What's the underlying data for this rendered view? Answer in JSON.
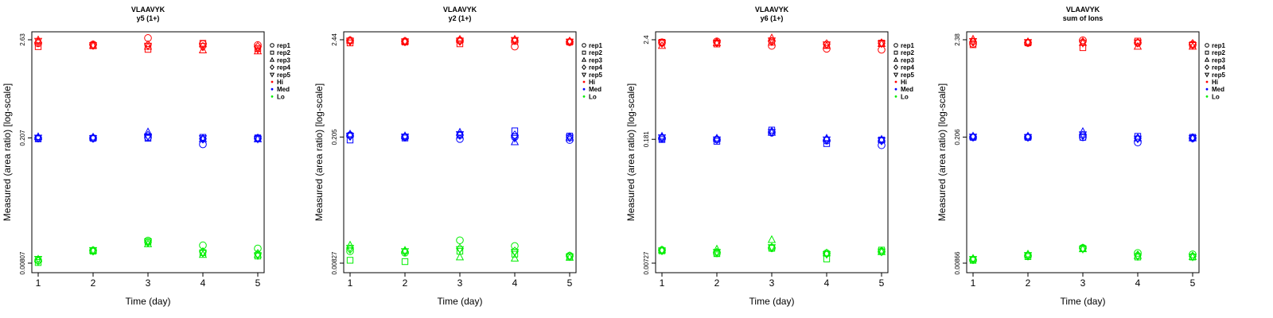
{
  "colors": {
    "Hi": "#ff0000",
    "Med": "#0000ff",
    "Lo": "#00ee00"
  },
  "legend": {
    "shapes": [
      {
        "label": "rep1",
        "shape": "circle"
      },
      {
        "label": "rep2",
        "shape": "square"
      },
      {
        "label": "rep3",
        "shape": "triangle-up"
      },
      {
        "label": "rep4",
        "shape": "diamond"
      },
      {
        "label": "rep5",
        "shape": "triangle-down"
      }
    ],
    "groups": [
      {
        "label": "Hi",
        "color": "#ff0000"
      },
      {
        "label": "Med",
        "color": "#0000ff"
      },
      {
        "label": "Lo",
        "color": "#00ee00"
      }
    ]
  },
  "chart_data": [
    {
      "type": "scatter",
      "title": "VLAAVYK",
      "subtitle": "y5 (1+)",
      "xlabel": "Time (day)",
      "ylabel": "Measured (area ratio) [log-scale]",
      "yscale": "log",
      "x_ticks": [
        1,
        2,
        3,
        4,
        5
      ],
      "y_ticks": [
        0.00807,
        0.207,
        2.63
      ],
      "y_tick_labels": [
        "0.00807",
        "0.207",
        "2.63"
      ],
      "ylim": [
        0.00807,
        2.63
      ],
      "legend_position": "right",
      "grid": false,
      "series": [
        {
          "group": "Hi",
          "x": [
            1,
            2,
            3,
            4,
            5
          ],
          "rep1": [
            2.4,
            2.33,
            2.75,
            2.35,
            2.29
          ],
          "rep2": [
            2.2,
            2.25,
            2.05,
            2.4,
            2.1
          ],
          "rep3": [
            2.6,
            2.25,
            2.2,
            2.0,
            1.95
          ],
          "rep4": [
            2.45,
            2.3,
            2.3,
            2.2,
            2.2
          ],
          "rep5": [
            2.55,
            2.28,
            2.25,
            2.25,
            2.05
          ]
        },
        {
          "group": "Med",
          "x": [
            1,
            2,
            3,
            4,
            5
          ],
          "rep1": [
            0.205,
            0.205,
            0.21,
            0.175,
            0.205
          ],
          "rep2": [
            0.202,
            0.205,
            0.205,
            0.21,
            0.207
          ],
          "rep3": [
            0.212,
            0.21,
            0.24,
            0.2,
            0.2
          ],
          "rep4": [
            0.207,
            0.207,
            0.22,
            0.202,
            0.205
          ],
          "rep5": [
            0.208,
            0.205,
            0.215,
            0.205,
            0.202
          ]
        },
        {
          "group": "Lo",
          "x": [
            1,
            2,
            3,
            4,
            5
          ],
          "rep1": [
            0.0087,
            0.0112,
            0.0145,
            0.0128,
            0.0118
          ],
          "rep2": [
            0.0082,
            0.011,
            0.014,
            0.0106,
            0.0097
          ],
          "rep3": [
            0.0089,
            0.0112,
            0.0132,
            0.01,
            0.01
          ],
          "rep4": [
            0.0085,
            0.0111,
            0.0138,
            0.0108,
            0.0103
          ],
          "rep5": [
            0.009,
            0.0113,
            0.0142,
            0.0105,
            0.0099
          ]
        }
      ]
    },
    {
      "type": "scatter",
      "title": "VLAAVYK",
      "subtitle": "y2 (1+)",
      "xlabel": "Time (day)",
      "ylabel": "Measured (area ratio) [log-scale]",
      "yscale": "log",
      "x_ticks": [
        1,
        2,
        3,
        4,
        5
      ],
      "y_ticks": [
        0.00827,
        0.205,
        2.44
      ],
      "y_tick_labels": [
        "0.00827",
        "0.205",
        "2.44"
      ],
      "ylim": [
        0.00827,
        2.44
      ],
      "legend_position": "right",
      "grid": false,
      "series": [
        {
          "group": "Hi",
          "x": [
            1,
            2,
            3,
            4,
            5
          ],
          "rep1": [
            2.4,
            2.35,
            2.4,
            2.05,
            2.3
          ],
          "rep2": [
            2.25,
            2.3,
            2.2,
            2.35,
            2.3
          ],
          "rep3": [
            2.4,
            2.35,
            2.45,
            2.45,
            2.35
          ],
          "rep4": [
            2.35,
            2.33,
            2.35,
            2.4,
            2.33
          ],
          "rep5": [
            2.38,
            2.34,
            2.38,
            2.42,
            2.32
          ]
        },
        {
          "group": "Med",
          "x": [
            1,
            2,
            3,
            4,
            5
          ],
          "rep1": [
            0.215,
            0.205,
            0.195,
            0.205,
            0.19
          ],
          "rep2": [
            0.19,
            0.2,
            0.215,
            0.24,
            0.21
          ],
          "rep3": [
            0.22,
            0.21,
            0.23,
            0.18,
            0.2
          ],
          "rep4": [
            0.21,
            0.205,
            0.215,
            0.215,
            0.205
          ],
          "rep5": [
            0.212,
            0.207,
            0.22,
            0.2,
            0.202
          ]
        },
        {
          "group": "Lo",
          "x": [
            1,
            2,
            3,
            4,
            5
          ],
          "rep1": [
            0.0112,
            0.0108,
            0.0148,
            0.0128,
            0.01
          ],
          "rep2": [
            0.0089,
            0.0086,
            0.0112,
            0.0104,
            0.0097
          ],
          "rep3": [
            0.013,
            0.0114,
            0.0096,
            0.0093,
            0.0095
          ],
          "rep4": [
            0.0118,
            0.0111,
            0.012,
            0.0112,
            0.0099
          ],
          "rep5": [
            0.0122,
            0.0112,
            0.0118,
            0.011,
            0.0098
          ]
        }
      ]
    },
    {
      "type": "scatter",
      "title": "VLAAVYK",
      "subtitle": "y6 (1+)",
      "xlabel": "Time (day)",
      "ylabel": "Measured (area ratio) [log-scale]",
      "yscale": "log",
      "x_ticks": [
        1,
        2,
        3,
        4,
        5
      ],
      "y_ticks": [
        0.00727,
        0.181,
        2.4
      ],
      "y_tick_labels": [
        "0.00727",
        "0.181",
        "2.4"
      ],
      "ylim": [
        0.00727,
        2.4
      ],
      "legend_position": "right",
      "grid": false,
      "series": [
        {
          "group": "Hi",
          "x": [
            1,
            2,
            3,
            4,
            5
          ],
          "rep1": [
            2.25,
            2.3,
            2.05,
            1.9,
            1.85
          ],
          "rep2": [
            2.25,
            2.15,
            2.25,
            2.1,
            2.2
          ],
          "rep3": [
            2.05,
            2.2,
            2.5,
            2.05,
            2.15
          ],
          "rep4": [
            2.2,
            2.25,
            2.3,
            2.15,
            2.2
          ],
          "rep5": [
            2.22,
            2.22,
            2.35,
            2.12,
            2.18
          ]
        },
        {
          "group": "Med",
          "x": [
            1,
            2,
            3,
            4,
            5
          ],
          "rep1": [
            0.185,
            0.18,
            0.215,
            0.175,
            0.155
          ],
          "rep2": [
            0.18,
            0.172,
            0.23,
            0.162,
            0.178
          ],
          "rep3": [
            0.195,
            0.185,
            0.215,
            0.185,
            0.18
          ],
          "rep4": [
            0.188,
            0.182,
            0.22,
            0.178,
            0.175
          ],
          "rep5": [
            0.19,
            0.18,
            0.218,
            0.18,
            0.176
          ]
        },
        {
          "group": "Lo",
          "x": [
            1,
            2,
            3,
            4,
            5
          ],
          "rep1": [
            0.0102,
            0.0094,
            0.0107,
            0.0094,
            0.0098
          ],
          "rep2": [
            0.01,
            0.0093,
            0.0107,
            0.0081,
            0.0102
          ],
          "rep3": [
            0.0102,
            0.0104,
            0.0133,
            0.0094,
            0.0097
          ],
          "rep4": [
            0.0101,
            0.0096,
            0.0109,
            0.0093,
            0.0099
          ],
          "rep5": [
            0.0101,
            0.0097,
            0.011,
            0.0092,
            0.0098
          ]
        }
      ]
    },
    {
      "type": "scatter",
      "title": "VLAAVYK",
      "subtitle": "sum of Ions",
      "xlabel": "Time (day)",
      "ylabel": "Measured (area ratio) [log-scale]",
      "yscale": "log",
      "x_ticks": [
        1,
        2,
        3,
        4,
        5
      ],
      "y_ticks": [
        0.00866,
        0.206,
        2.38
      ],
      "y_tick_labels": [
        "0.00866",
        "0.206",
        "2.38"
      ],
      "ylim": [
        0.00866,
        2.38
      ],
      "legend_position": "right",
      "grid": false,
      "series": [
        {
          "group": "Hi",
          "x": [
            1,
            2,
            3,
            4,
            5
          ],
          "rep1": [
            2.15,
            2.2,
            2.35,
            2.2,
            2.1
          ],
          "rep2": [
            2.1,
            2.2,
            1.95,
            2.3,
            2.1
          ],
          "rep3": [
            2.4,
            2.25,
            2.2,
            2.0,
            2.0
          ],
          "rep4": [
            2.25,
            2.22,
            2.25,
            2.2,
            2.15
          ],
          "rep5": [
            2.3,
            2.24,
            2.2,
            2.22,
            2.08
          ]
        },
        {
          "group": "Med",
          "x": [
            1,
            2,
            3,
            4,
            5
          ],
          "rep1": [
            0.205,
            0.205,
            0.205,
            0.18,
            0.2
          ],
          "rep2": [
            0.205,
            0.205,
            0.205,
            0.21,
            0.205
          ],
          "rep3": [
            0.21,
            0.21,
            0.235,
            0.2,
            0.2
          ],
          "rep4": [
            0.207,
            0.207,
            0.215,
            0.2,
            0.202
          ],
          "rep5": [
            0.208,
            0.206,
            0.22,
            0.198,
            0.201
          ]
        },
        {
          "group": "Lo",
          "x": [
            1,
            2,
            3,
            4,
            5
          ],
          "rep1": [
            0.0094,
            0.0105,
            0.0127,
            0.0112,
            0.0108
          ],
          "rep2": [
            0.0093,
            0.0102,
            0.0125,
            0.0101,
            0.0101
          ],
          "rep3": [
            0.0097,
            0.0108,
            0.0123,
            0.0104,
            0.0101
          ],
          "rep4": [
            0.0095,
            0.0104,
            0.0126,
            0.0106,
            0.0103
          ],
          "rep5": [
            0.0096,
            0.0106,
            0.0124,
            0.0103,
            0.0102
          ]
        }
      ]
    }
  ]
}
